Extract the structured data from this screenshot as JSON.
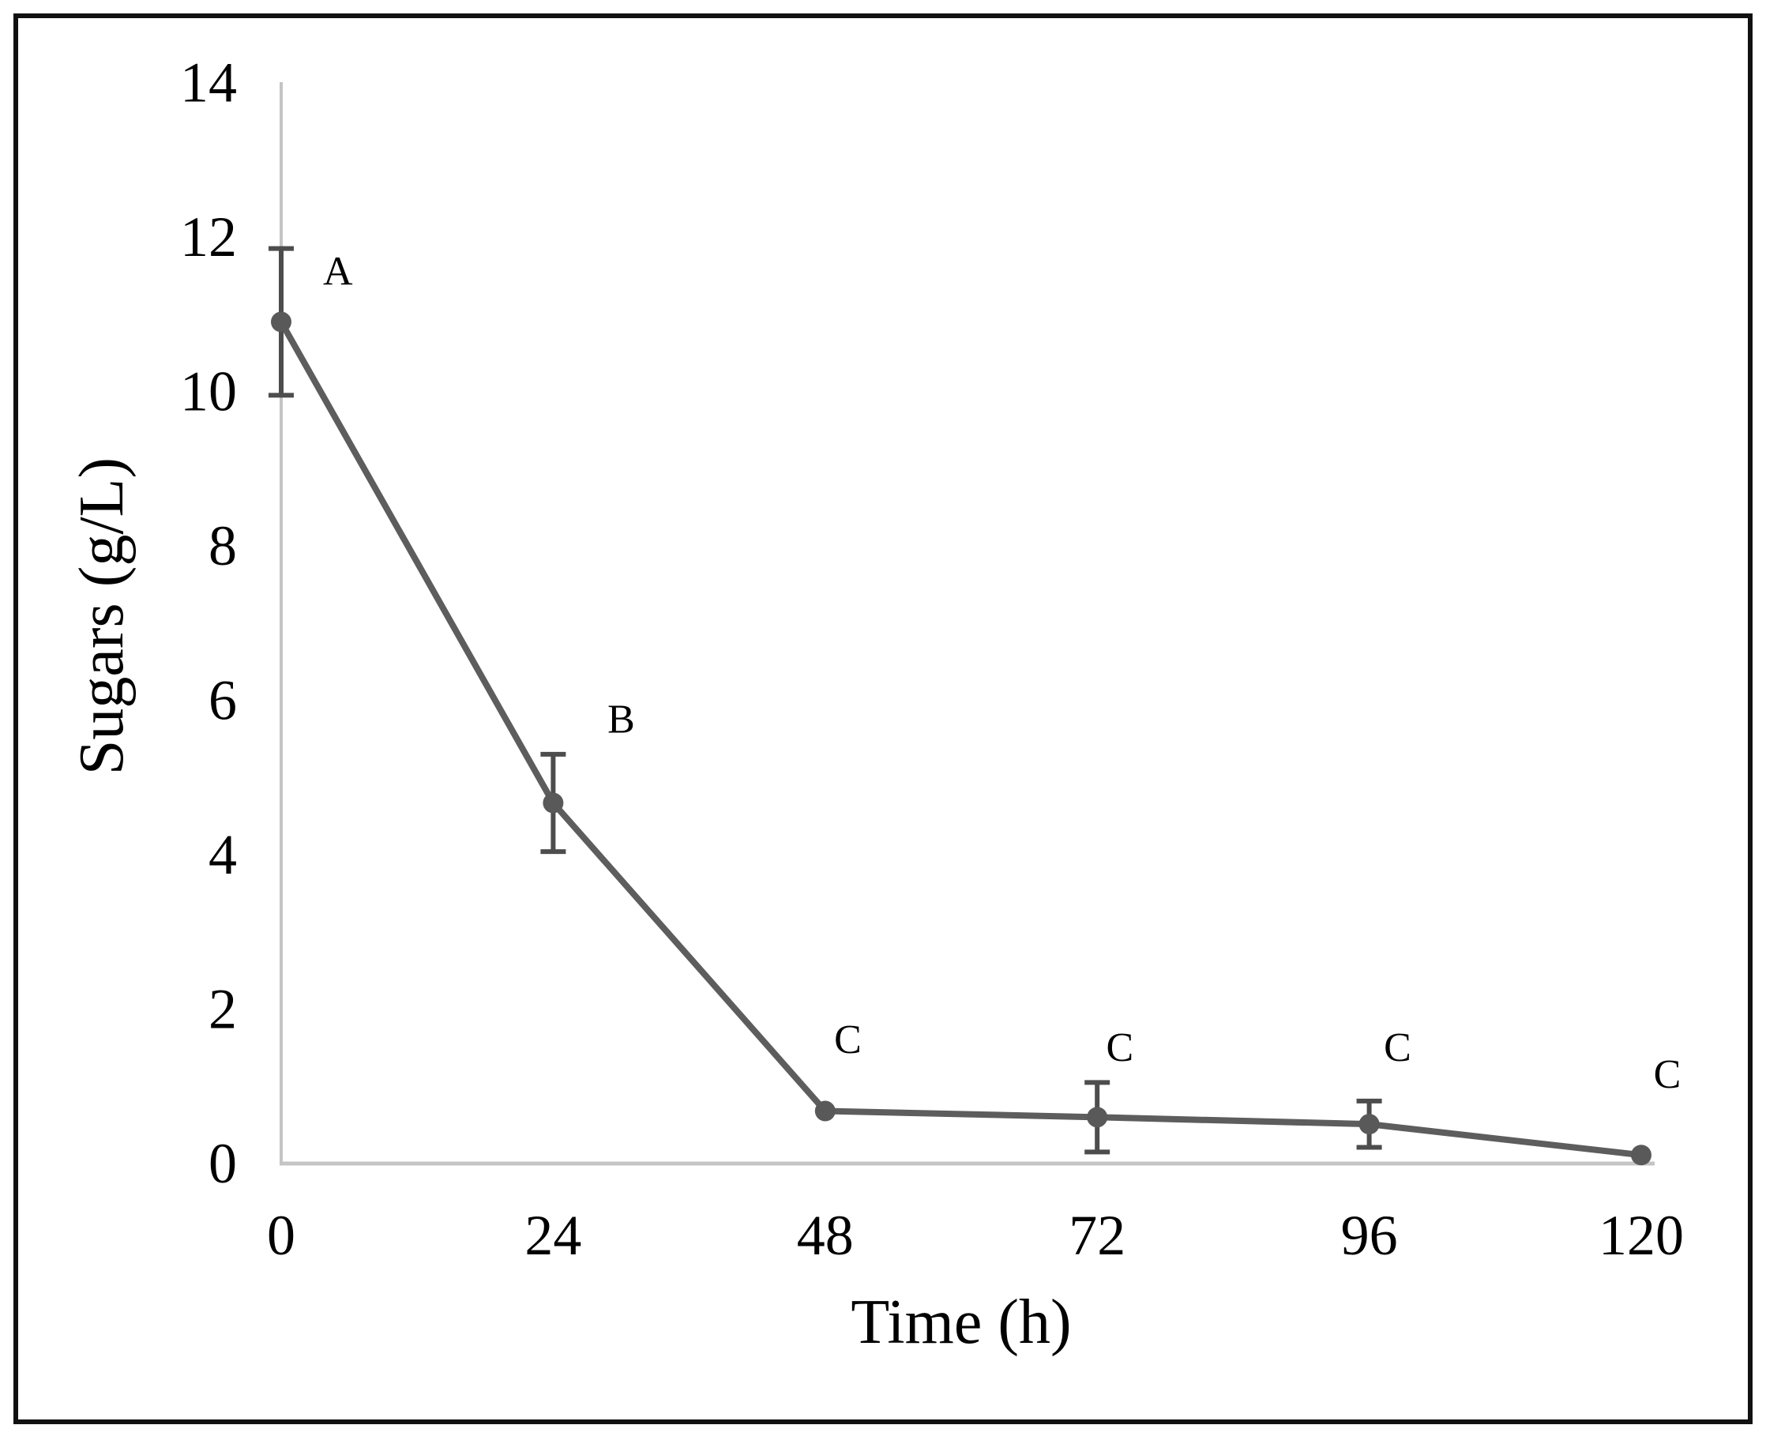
{
  "figure": {
    "background": "#ffffff",
    "border_color": "#111111"
  },
  "chart_data": {
    "type": "line",
    "title": "",
    "xlabel": "Time (h)",
    "ylabel": "Sugars (g/L)",
    "x_ticks": [
      0,
      24,
      48,
      72,
      96,
      120
    ],
    "y_ticks": [
      0,
      2,
      4,
      6,
      8,
      10,
      12,
      14
    ],
    "xlim": [
      0,
      120
    ],
    "ylim": [
      0,
      14
    ],
    "grid": "off",
    "legend": "none",
    "axis_color": "#c4c4c4",
    "text_color": "#000000",
    "series": [
      {
        "name": "Sugars",
        "color": "#5d5d5d",
        "marker": "circle",
        "marker_color": "#595959",
        "error_bar_color": "#4d4d4d",
        "x": [
          0,
          24,
          48,
          72,
          96,
          120
        ],
        "y": [
          10.9,
          4.67,
          0.68,
          0.6,
          0.51,
          0.11
        ],
        "y_err": [
          0.95,
          0.63,
          0,
          0.45,
          0.3,
          0
        ]
      }
    ],
    "annotations": [
      {
        "text": "A",
        "x": 5,
        "y": 11.55
      },
      {
        "text": "B",
        "x": 30,
        "y": 5.75
      },
      {
        "text": "C",
        "x": 50,
        "y": 1.6
      },
      {
        "text": "C",
        "x": 74,
        "y": 1.5
      },
      {
        "text": "C",
        "x": 98.5,
        "y": 1.5
      },
      {
        "text": "C",
        "x": 122.3,
        "y": 1.15
      }
    ]
  }
}
